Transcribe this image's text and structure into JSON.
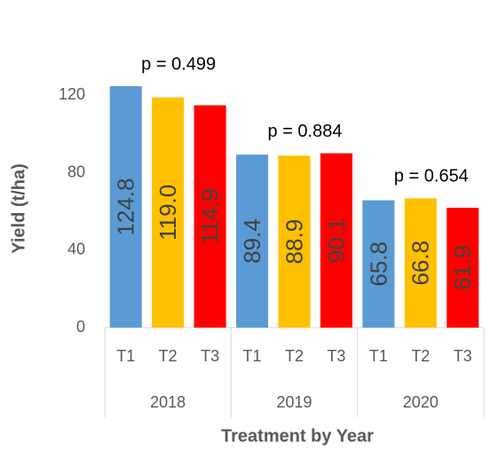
{
  "chart_data": {
    "type": "bar",
    "categories": [
      "T1",
      "T2",
      "T3",
      "T1",
      "T2",
      "T3",
      "T1",
      "T2",
      "T3"
    ],
    "groups": [
      "2018",
      "2019",
      "2020"
    ],
    "values": [
      124.8,
      119.0,
      114.9,
      89.4,
      88.9,
      90.1,
      65.8,
      66.8,
      61.9
    ],
    "value_labels": [
      "124.8",
      "119.0",
      "114.9",
      "89.4",
      "88.9",
      "90.1",
      "65.8",
      "66.8",
      "61.9"
    ],
    "colors": [
      "#5b9bd5",
      "#ffc000",
      "#ff0000",
      "#5b9bd5",
      "#ffc000",
      "#ff0000",
      "#5b9bd5",
      "#ffc000",
      "#ff0000"
    ],
    "annotations": [
      "p = 0.499",
      "p = 0.884",
      "p = 0.654"
    ],
    "ylabel": "Yield (t/ha)",
    "xlabel": "Treatment by Year",
    "ylim": [
      0,
      125
    ],
    "yticks": [
      0,
      40,
      80,
      120
    ],
    "grid": false
  }
}
